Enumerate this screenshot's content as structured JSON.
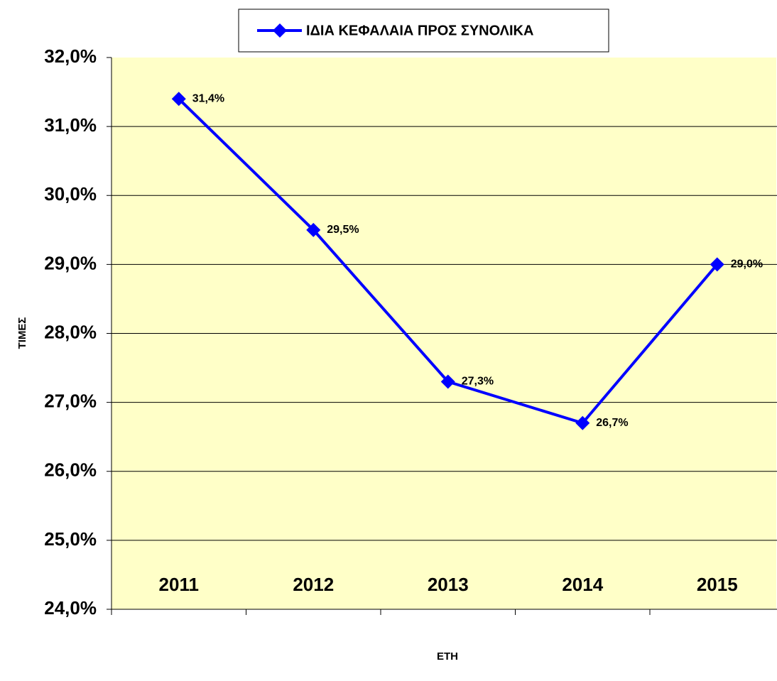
{
  "chart_data": {
    "type": "line",
    "categories": [
      "2011",
      "2012",
      "2013",
      "2014",
      "2015"
    ],
    "series": [
      {
        "name": "ΙΔΙΑ ΚΕΦΑΛΑΙΑ ΠΡΟΣ ΣΥΝΟΛΙΚΑ",
        "color": "#0000ff",
        "values": [
          31.4,
          29.5,
          27.3,
          26.7,
          29.0
        ],
        "value_labels": [
          "31,4%",
          "29,5%",
          "27,3%",
          "26,7%",
          "29,0%"
        ]
      }
    ],
    "ylim": [
      24,
      32
    ],
    "yticks": [
      {
        "value": 24,
        "label": "24,0%"
      },
      {
        "value": 25,
        "label": "25,0%"
      },
      {
        "value": 26,
        "label": "26,0%"
      },
      {
        "value": 27,
        "label": "27,0%"
      },
      {
        "value": 28,
        "label": "28,0%"
      },
      {
        "value": 29,
        "label": "29,0%"
      },
      {
        "value": 30,
        "label": "30,0%"
      },
      {
        "value": 31,
        "label": "31,0%"
      },
      {
        "value": 32,
        "label": "32,0%"
      }
    ],
    "xlabel": "ΕΤΗ",
    "ylabel": "ΤΙΜΕΣ",
    "grid": true,
    "legend": "top"
  }
}
